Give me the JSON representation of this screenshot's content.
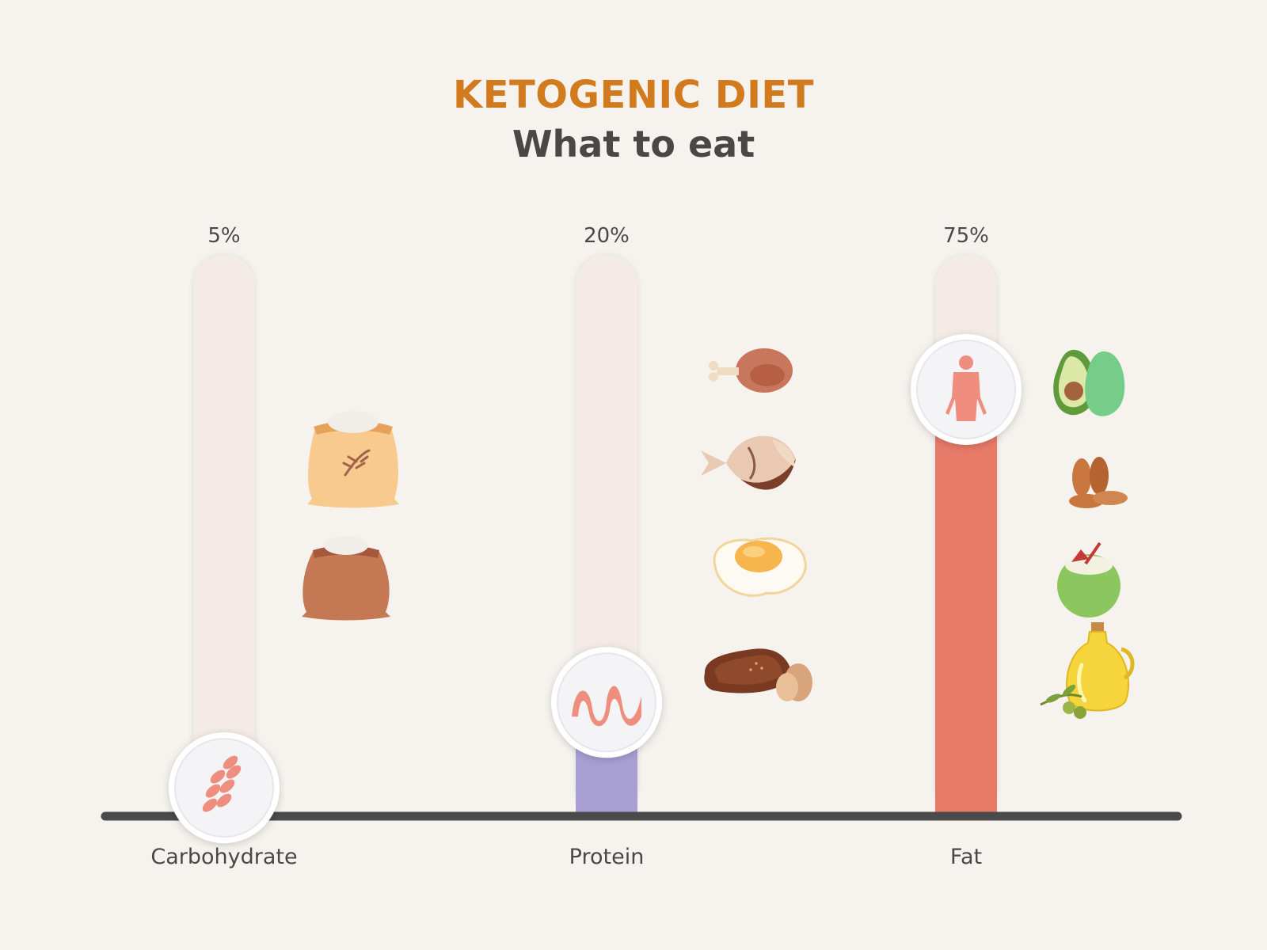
{
  "header": {
    "title": "KETOGENIC DIET",
    "subtitle": "What to eat"
  },
  "chart_data": {
    "type": "bar",
    "title": "KETOGENIC DIET",
    "subtitle": "What to eat",
    "categories": [
      "Carbohydrate",
      "Protein",
      "Fat"
    ],
    "values": [
      5,
      20,
      75
    ],
    "value_labels": [
      "5%",
      "20%",
      "75%"
    ],
    "ylim": [
      0,
      100
    ],
    "colors": [
      "#6fa98f",
      "#a89fd3",
      "#e87a68"
    ],
    "track_color": "#f4ebe6",
    "axis_color": "#4a4a4a",
    "marker_icons": [
      "wheat-icon",
      "bacon-icon",
      "human-body-icon"
    ],
    "food_icons": [
      [
        "flour-sack-icon",
        "brown-flour-sack-icon"
      ],
      [
        "chicken-drumstick-icon",
        "fish-icon",
        "fried-egg-icon",
        "steak-and-egg-icon"
      ],
      [
        "avocado-icon",
        "almonds-icon",
        "coconut-drink-icon",
        "olive-oil-bottle-icon"
      ]
    ],
    "grid": false,
    "legend": "none"
  }
}
